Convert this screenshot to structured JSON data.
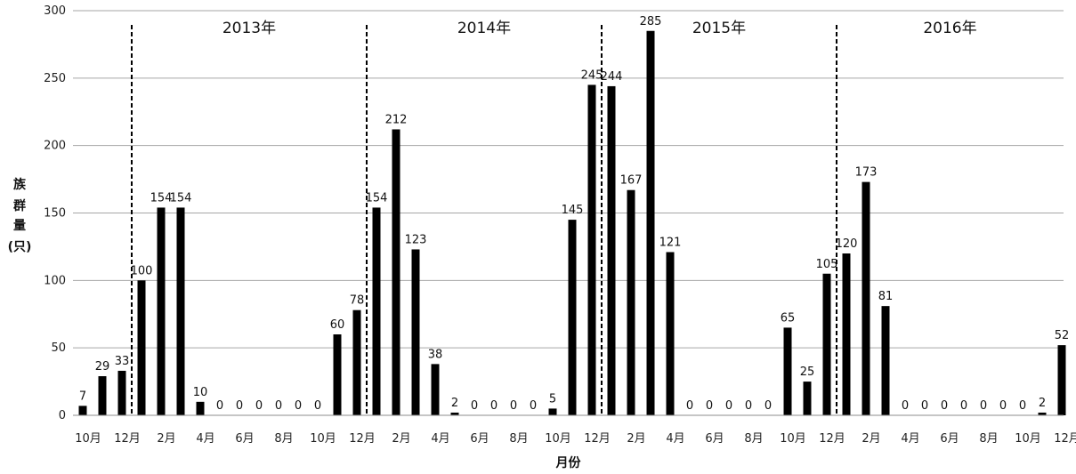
{
  "chart_data": {
    "type": "bar",
    "categories": [
      "10月",
      "11月",
      "12月",
      "1月",
      "2月",
      "3月",
      "4月",
      "5月",
      "6月",
      "7月",
      "8月",
      "9月",
      "10月",
      "11月",
      "12月",
      "1月",
      "2月",
      "3月",
      "4月",
      "5月",
      "6月",
      "7月",
      "8月",
      "9月",
      "10月",
      "11月",
      "12月",
      "1月",
      "2月",
      "3月",
      "4月",
      "5月",
      "6月",
      "7月",
      "8月",
      "9月",
      "10月",
      "11月",
      "12月",
      "1月",
      "2月",
      "3月",
      "4月",
      "5月",
      "6月",
      "7月",
      "8月",
      "9月",
      "10月",
      "11月",
      "12月"
    ],
    "values": [
      7,
      29,
      33,
      100,
      154,
      154,
      10,
      0,
      0,
      0,
      0,
      0,
      0,
      60,
      78,
      154,
      212,
      123,
      38,
      2,
      0,
      0,
      0,
      0,
      5,
      145,
      245,
      244,
      167,
      285,
      121,
      0,
      0,
      0,
      0,
      0,
      65,
      25,
      105,
      120,
      173,
      81,
      0,
      0,
      0,
      0,
      0,
      0,
      0,
      2,
      52
    ],
    "value_labels": [
      "7",
      "29",
      "33",
      "100",
      "154",
      "154",
      "10",
      "0",
      "0",
      "0",
      "0",
      "0",
      "0",
      "60",
      "78",
      "154",
      "212",
      "123",
      "38",
      "2",
      "0",
      "0",
      "0",
      "0",
      "5",
      "145",
      "245",
      "244",
      "167",
      "285",
      "121",
      "0",
      "0",
      "0",
      "0",
      "0",
      "65",
      "25",
      "105",
      "120",
      "173",
      "81",
      "0",
      "0",
      "0",
      "0",
      "0",
      "0",
      "0",
      "2",
      "52"
    ],
    "xtick_labels": [
      "10月",
      "12月",
      "2月",
      "4月",
      "6月",
      "8月",
      "10月",
      "12月",
      "2月",
      "4月",
      "6月",
      "8月",
      "10月",
      "12月",
      "2月",
      "4月",
      "6月",
      "8月",
      "10月",
      "12月",
      "2月",
      "4月",
      "6月",
      "8月",
      "10月",
      "12月"
    ],
    "yticks": [
      0,
      50,
      100,
      150,
      200,
      250,
      300
    ],
    "ylim": [
      0,
      300
    ],
    "ylabel_chars": [
      "族",
      "群",
      "量",
      "(只)"
    ],
    "xlabel": "月份",
    "year_markers": [
      {
        "label": "2013年",
        "after_index": 2
      },
      {
        "label": "2014年",
        "after_index": 14
      },
      {
        "label": "2015年",
        "after_index": 26
      },
      {
        "label": "2016年",
        "after_index": 38
      }
    ],
    "grid": true,
    "colors": {
      "bar": "#000000",
      "grid": "#a6a6a6",
      "divider": "#000000"
    }
  }
}
